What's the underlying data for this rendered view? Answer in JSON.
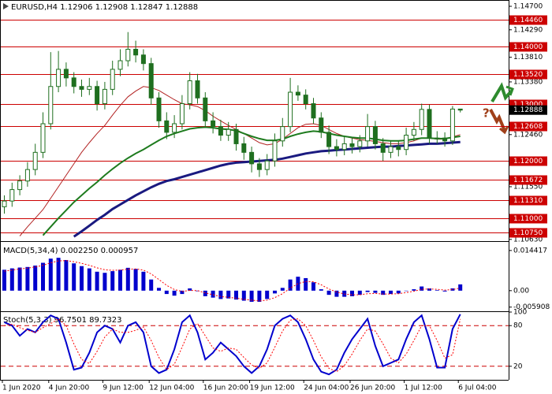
{
  "chart_data": [
    {
      "type": "candlestick",
      "title": "EURUSD,H4 1.12906 1.12908 1.12847 1.12888",
      "categories": [
        "1 Jun 2020",
        null,
        null,
        null,
        null,
        null,
        "4 Jun 20:00",
        null,
        null,
        null,
        null,
        null,
        null,
        "9 Jun 12:00",
        null,
        null,
        null,
        null,
        null,
        "12 Jun 04:00",
        null,
        null,
        null,
        null,
        null,
        null,
        "16 Jun 20:00",
        null,
        null,
        null,
        null,
        null,
        "19 Jun 12:00",
        null,
        null,
        null,
        null,
        null,
        null,
        "24 Jun 04:00",
        null,
        null,
        null,
        null,
        null,
        "26 Jun 20:00",
        null,
        null,
        null,
        null,
        null,
        null,
        "1 Jul 12:00",
        null,
        null,
        null,
        null,
        null,
        null,
        "6 Jul 04:00"
      ],
      "open": [
        1.112,
        1.113,
        1.115,
        1.1165,
        1.1185,
        1.1215,
        1.1265,
        1.133,
        1.136,
        1.1345,
        1.133,
        1.1325,
        1.133,
        1.13,
        1.1325,
        1.136,
        1.1375,
        1.1395,
        1.1385,
        1.137,
        1.131,
        1.127,
        1.125,
        1.1265,
        1.13,
        1.134,
        1.131,
        1.127,
        1.126,
        1.1245,
        1.1255,
        1.123,
        1.1215,
        1.1195,
        1.1185,
        1.12,
        1.1235,
        1.126,
        1.132,
        1.1315,
        1.13,
        1.1275,
        1.125,
        1.1225,
        1.122,
        1.123,
        1.1225,
        1.1235,
        1.126,
        1.123,
        1.1215,
        1.1225,
        1.122,
        1.1245,
        1.1255,
        1.129,
        1.124,
        1.124,
        1.1235,
        1.12906
      ],
      "high": [
        1.114,
        1.1162,
        1.1175,
        1.1198,
        1.123,
        1.1285,
        1.139,
        1.1392,
        1.1372,
        1.1355,
        1.1342,
        1.1345,
        1.134,
        1.1338,
        1.1375,
        1.1395,
        1.1425,
        1.141,
        1.1395,
        1.138,
        1.132,
        1.1285,
        1.128,
        1.1315,
        1.1355,
        1.1352,
        1.132,
        1.1285,
        1.1272,
        1.1268,
        1.1265,
        1.1242,
        1.1225,
        1.1205,
        1.1212,
        1.1248,
        1.1275,
        1.1345,
        1.1332,
        1.1325,
        1.131,
        1.1285,
        1.1262,
        1.1238,
        1.1242,
        1.124,
        1.1245,
        1.1282,
        1.127,
        1.124,
        1.1236,
        1.1235,
        1.1258,
        1.1268,
        1.13,
        1.1298,
        1.1252,
        1.125,
        1.1296,
        1.12908
      ],
      "low": [
        1.1108,
        1.112,
        1.114,
        1.1155,
        1.1175,
        1.1205,
        1.1255,
        1.132,
        1.133,
        1.1318,
        1.1312,
        1.1315,
        1.1288,
        1.129,
        1.1315,
        1.1348,
        1.1365,
        1.1372,
        1.1358,
        1.1298,
        1.1258,
        1.1238,
        1.124,
        1.1255,
        1.129,
        1.13,
        1.126,
        1.1248,
        1.1235,
        1.1235,
        1.1218,
        1.1202,
        1.118,
        1.1172,
        1.1175,
        1.119,
        1.1225,
        1.125,
        1.1305,
        1.129,
        1.1265,
        1.124,
        1.1212,
        1.1208,
        1.121,
        1.1213,
        1.1215,
        1.1225,
        1.122,
        1.12,
        1.1205,
        1.1208,
        1.121,
        1.1235,
        1.1245,
        1.123,
        1.123,
        1.1225,
        1.1228,
        1.12847
      ],
      "close": [
        1.113,
        1.115,
        1.1165,
        1.1185,
        1.1215,
        1.1265,
        1.133,
        1.136,
        1.1345,
        1.133,
        1.1325,
        1.133,
        1.13,
        1.1325,
        1.136,
        1.1375,
        1.1395,
        1.1385,
        1.137,
        1.131,
        1.127,
        1.125,
        1.1265,
        1.13,
        1.134,
        1.131,
        1.127,
        1.126,
        1.1245,
        1.1255,
        1.123,
        1.1215,
        1.1195,
        1.1185,
        1.12,
        1.1235,
        1.126,
        1.132,
        1.1315,
        1.13,
        1.1275,
        1.125,
        1.1225,
        1.122,
        1.123,
        1.1225,
        1.1235,
        1.126,
        1.123,
        1.1215,
        1.1225,
        1.122,
        1.1245,
        1.1255,
        1.129,
        1.124,
        1.124,
        1.1235,
        1.12906,
        1.12888
      ],
      "color": "#1f6f1f",
      "lines": [
        {
          "color": "#b22222",
          "width": 1,
          "values": [
            null,
            null,
            1.1069,
            1.1085,
            1.11,
            1.1115,
            1.1135,
            1.1155,
            1.1175,
            1.1195,
            1.1215,
            1.1232,
            1.1248,
            1.1262,
            1.128,
            1.1297,
            1.1312,
            1.1322,
            1.133,
            1.1328,
            1.1323,
            1.1315,
            1.1307,
            1.13,
            1.1298,
            1.1295,
            1.1288,
            1.1278,
            1.127,
            1.1262,
            1.1255,
            1.1248,
            1.124,
            1.1232,
            1.1228,
            1.123,
            1.1238,
            1.1248,
            1.1258,
            1.1264,
            1.1265,
            1.1262,
            1.1255,
            1.1248,
            1.1243,
            1.124,
            1.1237,
            1.1236,
            1.1234,
            1.1232,
            1.123,
            1.123,
            1.1232,
            1.1235,
            1.124,
            1.124,
            1.1238,
            1.1238,
            1.1242,
            1.1246
          ]
        },
        {
          "color": "#1e7b1e",
          "width": 2,
          "values": [
            null,
            null,
            null,
            null,
            null,
            1.107,
            1.1085,
            1.11,
            1.1114,
            1.1128,
            1.114,
            1.1152,
            1.1163,
            1.1175,
            1.1186,
            1.1196,
            1.1205,
            1.1213,
            1.122,
            1.1228,
            1.1236,
            1.1243,
            1.1248,
            1.1252,
            1.1256,
            1.1258,
            1.1259,
            1.1258,
            1.1256,
            1.1255,
            1.1253,
            1.1248,
            1.1243,
            1.1239,
            1.1236,
            1.1236,
            1.1238,
            1.1243,
            1.1247,
            1.125,
            1.1252,
            1.1251,
            1.1248,
            1.1245,
            1.1243,
            1.1241,
            1.124,
            1.124,
            1.1238,
            1.1236,
            1.1235,
            1.1235,
            1.1236,
            1.1238,
            1.124,
            1.124,
            1.1239,
            1.1239,
            1.1241,
            1.1243
          ]
        },
        {
          "color": "#1a1a80",
          "width": 3,
          "values": [
            null,
            null,
            null,
            null,
            null,
            null,
            null,
            null,
            null,
            1.1068,
            1.1077,
            1.1087,
            1.1097,
            1.1106,
            1.1116,
            1.1124,
            1.1132,
            1.114,
            1.1147,
            1.1154,
            1.116,
            1.1165,
            1.1168,
            1.1172,
            1.1176,
            1.118,
            1.1184,
            1.1188,
            1.1192,
            1.1195,
            1.1197,
            1.1198,
            1.1199,
            1.12,
            1.1201,
            1.1202,
            1.1204,
            1.1207,
            1.121,
            1.1213,
            1.1215,
            1.1217,
            1.1218,
            1.1219,
            1.122,
            1.1221,
            1.1222,
            1.1223,
            1.1224,
            1.1225,
            1.1225,
            1.1226,
            1.1227,
            1.1228,
            1.1229,
            1.123,
            1.123,
            1.1231,
            1.1232,
            1.1233
          ]
        }
      ],
      "ylim": [
        1.106,
        1.1481
      ],
      "yticks": [
        {
          "value": 1.147,
          "label": "1.14700"
        },
        {
          "value": 1.1429,
          "label": "1.14290"
        },
        {
          "value": 1.1381,
          "label": "1.13810"
        },
        {
          "value": 1.1338,
          "label": "1.13380"
        },
        {
          "value": 1.1246,
          "label": "1.12460"
        },
        {
          "value": 1.1155,
          "label": "1.11550"
        },
        {
          "value": 1.1063,
          "label": "1.10630"
        }
      ],
      "levels": [
        {
          "value": 1.1446,
          "label": "1.14460"
        },
        {
          "value": 1.14,
          "label": "1.14000"
        },
        {
          "value": 1.1352,
          "label": "1.13520"
        },
        {
          "value": 1.13,
          "label": "1.13000"
        },
        {
          "value": 1.12608,
          "label": "1.12608"
        },
        {
          "value": 1.12,
          "label": "1.12000"
        },
        {
          "value": 1.11672,
          "label": "1.11672"
        },
        {
          "value": 1.1131,
          "label": "1.11310"
        },
        {
          "value": 1.11,
          "label": "1.11000"
        },
        {
          "value": 1.1075,
          "label": "1.10750"
        }
      ],
      "level_color": "#cc0000",
      "annotation": "?"
    },
    {
      "type": "macd",
      "title": "MACD(5,34,4) 0.002250 0.000957",
      "series": [
        {
          "color": "#0000cd",
          "style": "histogram",
          "values": [
            0.0075,
            0.008,
            0.0083,
            0.0085,
            0.009,
            0.01,
            0.0115,
            0.0118,
            0.011,
            0.0098,
            0.0088,
            0.008,
            0.0068,
            0.0064,
            0.007,
            0.0075,
            0.0082,
            0.0078,
            0.0068,
            0.004,
            0.001,
            -0.0012,
            -0.0018,
            -0.0012,
            0.0008,
            -0.0002,
            -0.002,
            -0.0025,
            -0.003,
            -0.0028,
            -0.0032,
            -0.0036,
            -0.004,
            -0.004,
            -0.003,
            -0.001,
            0.001,
            0.004,
            0.005,
            0.0045,
            0.003,
            0.0005,
            -0.0015,
            -0.0022,
            -0.0022,
            -0.002,
            -0.0015,
            -0.0005,
            -0.0008,
            -0.0015,
            -0.0012,
            -0.001,
            0.0,
            0.0005,
            0.0015,
            0.0008,
            0.0002,
            -0.0003,
            0.0008,
            0.00225
          ]
        },
        {
          "color": "#ff0000",
          "style": "dotted",
          "values": [
            0.007,
            0.0074,
            0.0078,
            0.0081,
            0.0085,
            0.0091,
            0.01,
            0.0107,
            0.0108,
            0.0104,
            0.0098,
            0.0091,
            0.0082,
            0.0075,
            0.0073,
            0.0074,
            0.0077,
            0.0078,
            0.0074,
            0.006,
            0.004,
            0.0019,
            0.0004,
            -0.0003,
            0.0001,
            0.0,
            -0.0008,
            -0.0015,
            -0.0021,
            -0.0024,
            -0.0027,
            -0.0031,
            -0.0034,
            -0.0037,
            -0.0034,
            -0.0025,
            -0.0011,
            0.0009,
            0.0025,
            0.0033,
            0.0032,
            0.0021,
            0.0006,
            -0.0005,
            -0.0012,
            -0.0015,
            -0.0015,
            -0.0011,
            -0.001,
            -0.0012,
            -0.0012,
            -0.0011,
            -0.0007,
            -0.0002,
            0.0005,
            0.0006,
            0.0005,
            0.0002,
            0.0004,
            0.000957
          ]
        }
      ],
      "ylim": [
        -0.0074,
        0.0175
      ],
      "yticks": [
        0.014417,
        {
          "value": 0,
          "label": "0.00"
        },
        -0.005908
      ]
    },
    {
      "type": "stochastic",
      "title": "Stoch(5,3,3) 96.7501 89.7323",
      "series": [
        {
          "color": "#0000cd",
          "style": "solid",
          "values": [
            85,
            80,
            65,
            75,
            70,
            85,
            95,
            90,
            55,
            15,
            18,
            40,
            70,
            80,
            75,
            55,
            80,
            85,
            70,
            20,
            10,
            15,
            45,
            85,
            95,
            70,
            30,
            40,
            55,
            45,
            35,
            20,
            10,
            20,
            45,
            80,
            90,
            95,
            85,
            60,
            30,
            12,
            8,
            15,
            40,
            60,
            75,
            90,
            50,
            20,
            25,
            30,
            60,
            85,
            95,
            60,
            18,
            18,
            75,
            96.7501
          ]
        },
        {
          "color": "#ff0000",
          "style": "dotted",
          "values": [
            80,
            82,
            77,
            73,
            70,
            77,
            83,
            90,
            80,
            53,
            30,
            24,
            42,
            63,
            75,
            70,
            70,
            73,
            78,
            58,
            33,
            15,
            23,
            48,
            75,
            83,
            65,
            47,
            42,
            47,
            45,
            33,
            22,
            17,
            25,
            48,
            72,
            88,
            90,
            80,
            58,
            34,
            17,
            12,
            21,
            38,
            58,
            75,
            72,
            53,
            32,
            25,
            38,
            58,
            80,
            80,
            58,
            32,
            37,
            89.7323
          ]
        }
      ],
      "ylim": [
        0,
        100
      ],
      "yticks": [
        100,
        80,
        20
      ],
      "levels": [
        80,
        20
      ],
      "level_color": "#cc0000"
    }
  ]
}
